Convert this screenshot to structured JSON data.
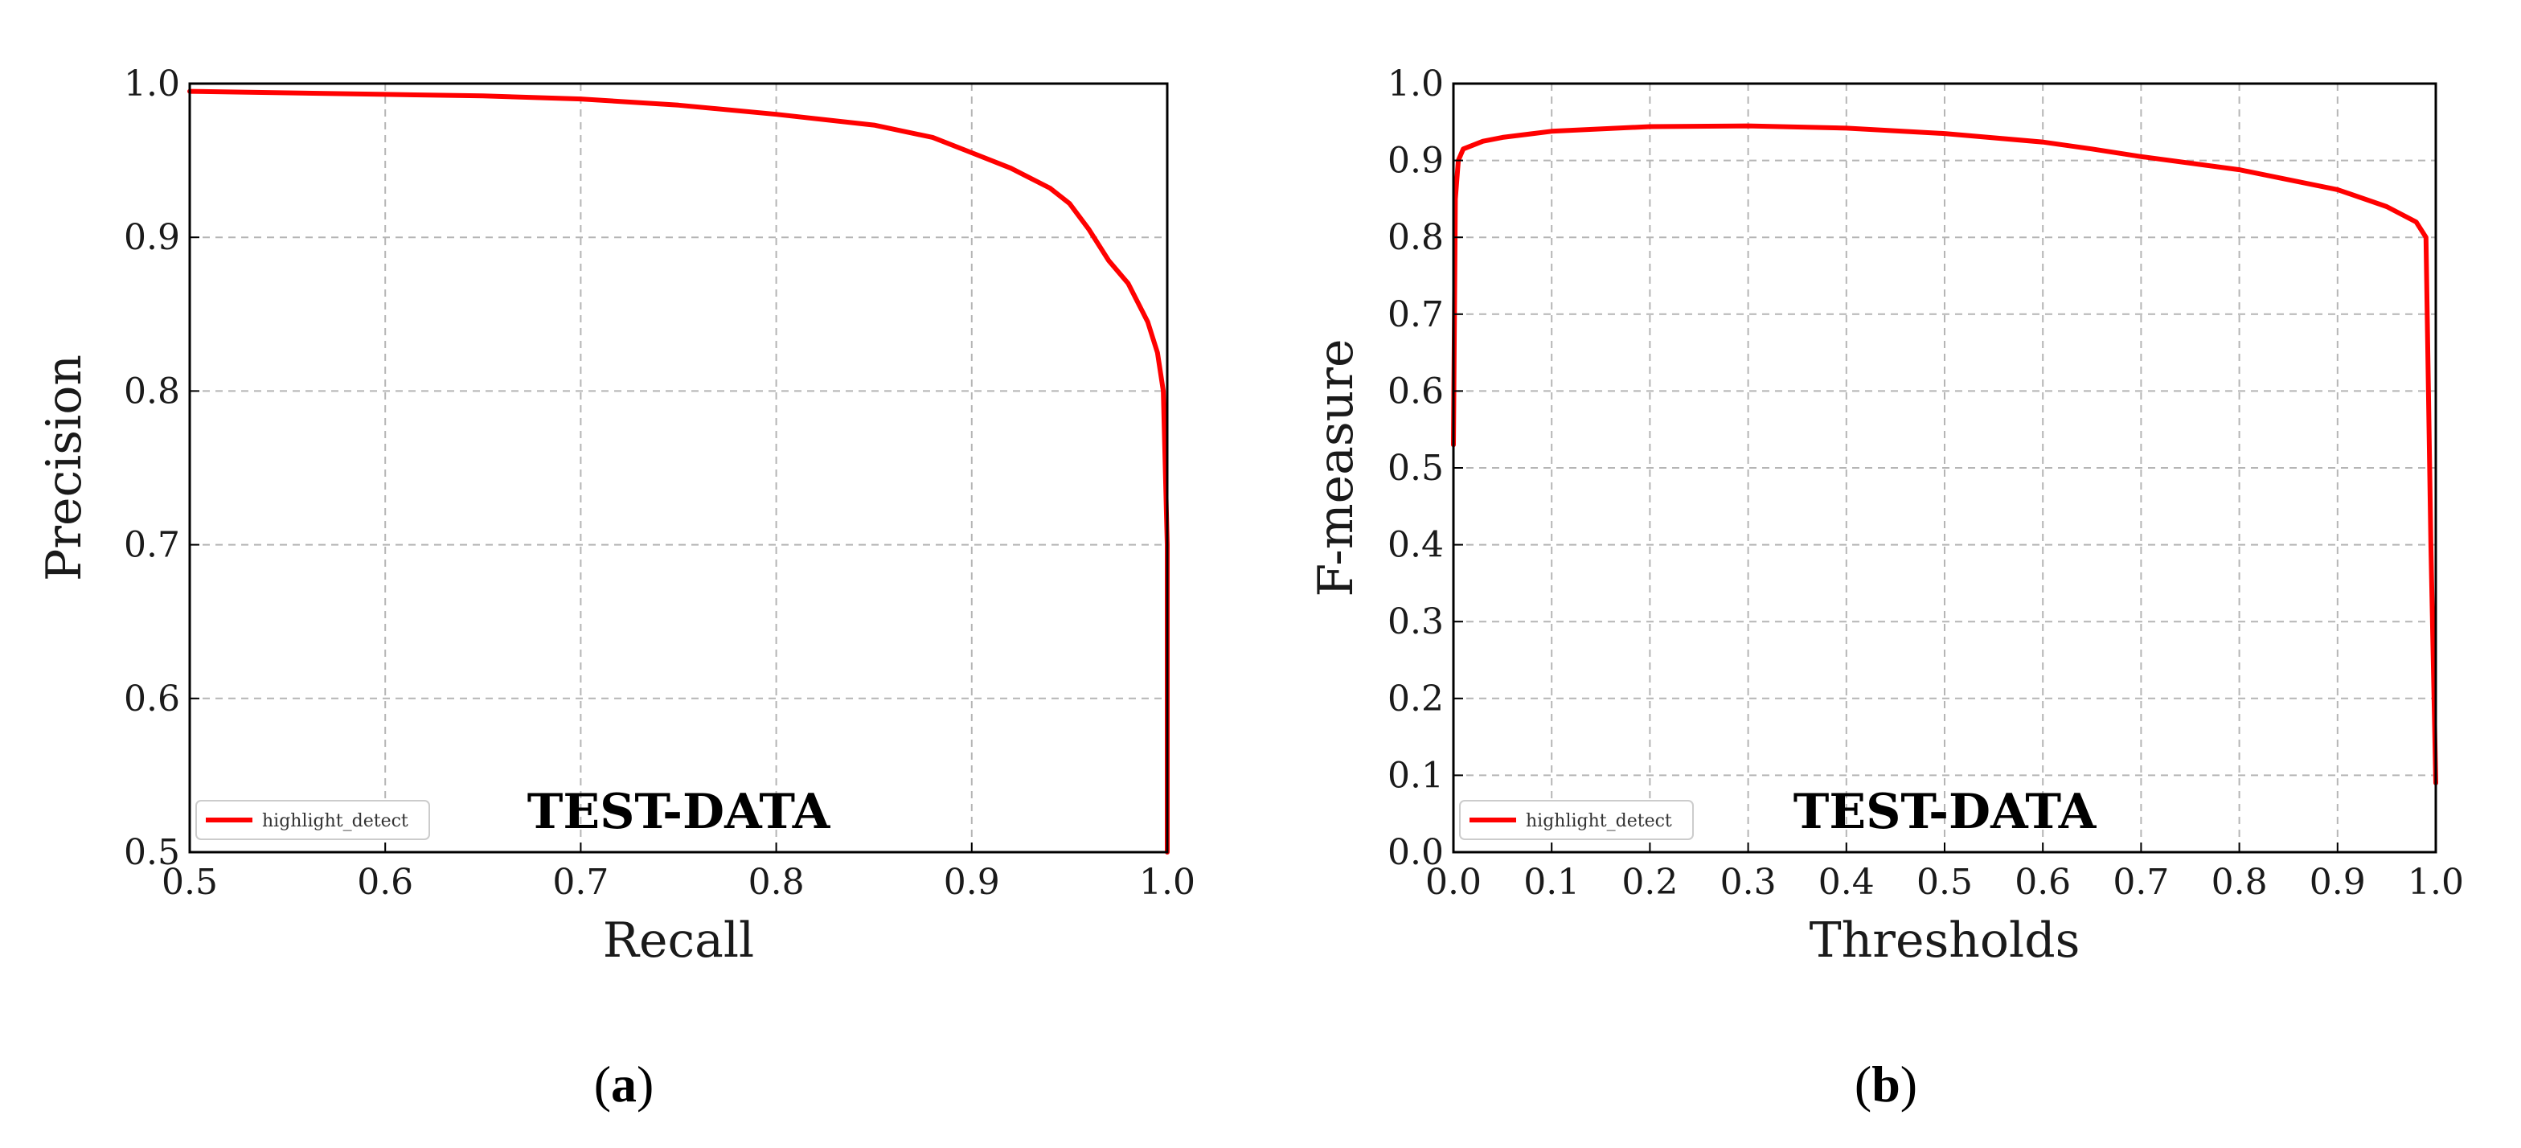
{
  "chart_data": [
    {
      "type": "line",
      "panel_label": "a",
      "title": "TEST-DATA",
      "xlabel": "Recall",
      "ylabel": "Precision",
      "xlim": [
        0.5,
        1.0
      ],
      "ylim": [
        0.5,
        1.0
      ],
      "xticks": [
        "0.5",
        "0.6",
        "0.7",
        "0.8",
        "0.9",
        "1.0"
      ],
      "yticks": [
        "0.5",
        "0.6",
        "0.7",
        "0.8",
        "0.9",
        "1.0"
      ],
      "grid": true,
      "legend_position": "lower-left",
      "line_color": "#ff0000",
      "series": [
        {
          "name": "highlight_detect",
          "x": [
            0.5,
            0.55,
            0.6,
            0.65,
            0.7,
            0.75,
            0.8,
            0.85,
            0.88,
            0.9,
            0.92,
            0.94,
            0.95,
            0.96,
            0.97,
            0.98,
            0.99,
            0.995,
            0.998,
            1.0,
            1.0
          ],
          "y": [
            0.995,
            0.994,
            0.993,
            0.992,
            0.99,
            0.986,
            0.98,
            0.973,
            0.965,
            0.955,
            0.945,
            0.932,
            0.922,
            0.905,
            0.885,
            0.87,
            0.845,
            0.825,
            0.8,
            0.7,
            0.5
          ]
        }
      ]
    },
    {
      "type": "line",
      "panel_label": "b",
      "title": "TEST-DATA",
      "xlabel": "Thresholds",
      "ylabel": "F-measure",
      "xlim": [
        0.0,
        1.0
      ],
      "ylim": [
        0.0,
        1.0
      ],
      "xticks": [
        "0.0",
        "0.1",
        "0.2",
        "0.3",
        "0.4",
        "0.5",
        "0.6",
        "0.7",
        "0.8",
        "0.9",
        "1.0"
      ],
      "yticks": [
        "0.0",
        "0.1",
        "0.2",
        "0.3",
        "0.4",
        "0.5",
        "0.6",
        "0.7",
        "0.8",
        "0.9",
        "1.0"
      ],
      "grid": true,
      "legend_position": "lower-left",
      "line_color": "#ff0000",
      "series": [
        {
          "name": "highlight_detect",
          "x": [
            0.0,
            0.002,
            0.005,
            0.01,
            0.03,
            0.05,
            0.1,
            0.2,
            0.3,
            0.4,
            0.5,
            0.6,
            0.65,
            0.7,
            0.8,
            0.9,
            0.95,
            0.98,
            0.99,
            0.995,
            1.0
          ],
          "y": [
            0.53,
            0.85,
            0.9,
            0.915,
            0.925,
            0.93,
            0.938,
            0.944,
            0.945,
            0.942,
            0.935,
            0.924,
            0.915,
            0.905,
            0.888,
            0.862,
            0.84,
            0.82,
            0.8,
            0.4,
            0.09
          ]
        }
      ]
    }
  ]
}
